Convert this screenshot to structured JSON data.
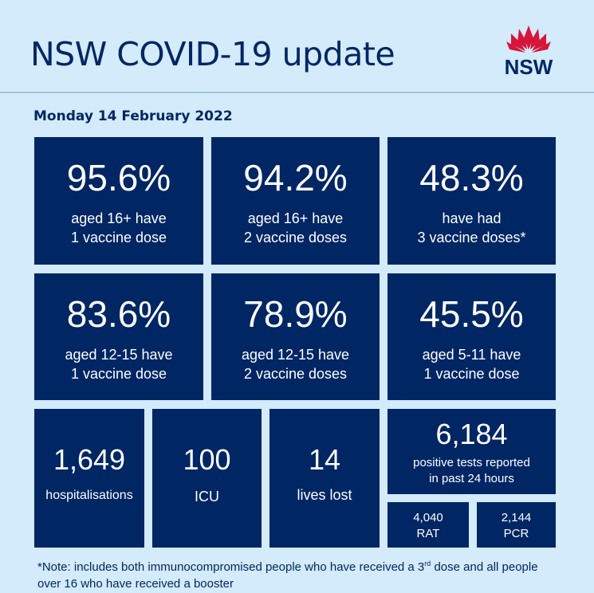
{
  "header": {
    "title": "NSW COVID-19 update",
    "logo_text": "NSW",
    "date": "Monday 14 February 2022"
  },
  "vaccine_tiles": [
    {
      "value": "95.6%",
      "line1": "aged 16+ have",
      "line2": "1 vaccine dose"
    },
    {
      "value": "94.2%",
      "line1": "aged 16+ have",
      "line2": "2 vaccine doses"
    },
    {
      "value": "48.3%",
      "line1": "have had",
      "line2": "3 vaccine doses*"
    },
    {
      "value": "83.6%",
      "line1": "aged 12-15 have",
      "line2": "1 vaccine dose"
    },
    {
      "value": "78.9%",
      "line1": "aged 12-15 have",
      "line2": "2 vaccine doses"
    },
    {
      "value": "45.5%",
      "line1": "aged 5-11 have",
      "line2": "1 vaccine dose"
    }
  ],
  "stats": {
    "hospitalisations": {
      "value": "1,649",
      "label": "hospitalisations"
    },
    "icu": {
      "value": "100",
      "label": "ICU"
    },
    "deaths": {
      "value": "14",
      "label": "lives lost"
    },
    "positive": {
      "value": "6,184",
      "line1": "positive tests reported",
      "line2": "in past 24 hours"
    },
    "rat": {
      "value": "4,040",
      "label": "RAT"
    },
    "pcr": {
      "value": "2,144",
      "label": "PCR"
    }
  },
  "note": {
    "part1": "*Note: includes both immunocompromised people who have received a 3",
    "sup": "rd",
    "part2": " dose and all people over 16 who have received a booster"
  }
}
